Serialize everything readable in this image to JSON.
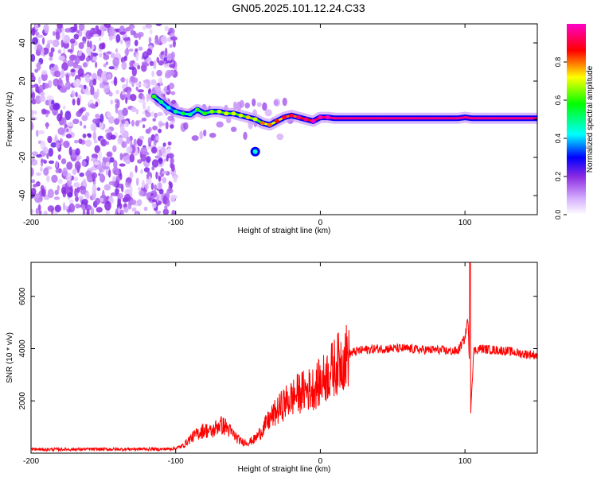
{
  "title": "GN05.2025.101.12.24.C33",
  "chart_data": [
    {
      "type": "heatmap",
      "xlabel": "Height of straight line (km)",
      "ylabel": "Frequency (Hz)",
      "xlim": [
        -200,
        150
      ],
      "ylim": [
        -50,
        50
      ],
      "xticks": [
        -200,
        -100,
        0,
        100
      ],
      "yticks": [
        -40,
        -20,
        0,
        20,
        40
      ],
      "colorbar": {
        "label": "Normalized spectral amplitude",
        "range": [
          0,
          1
        ],
        "ticks": [
          "0.0",
          "0.2",
          "0.4",
          "0.6",
          "0.8"
        ],
        "colors": [
          "#ffffff",
          "#d9b3ff",
          "#8a2be2",
          "#0000ff",
          "#00ffff",
          "#00ff00",
          "#ffff00",
          "#ff0000",
          "#ff00c8"
        ]
      },
      "noise_region_x": [
        -200,
        -100
      ],
      "track": {
        "x": [
          -115,
          -110,
          -105,
          -100,
          -95,
          -90,
          -85,
          -80,
          -75,
          -70,
          -65,
          -60,
          -55,
          -50,
          -45,
          -40,
          -35,
          -30,
          -25,
          -20,
          -15,
          -10,
          -5,
          0,
          5,
          10,
          20,
          40,
          60,
          80,
          95,
          100,
          105,
          120,
          150
        ],
        "freq": [
          12,
          9,
          6,
          4,
          3,
          2.5,
          5,
          3,
          4,
          4,
          3,
          3,
          2,
          1,
          0,
          -2,
          -3,
          -1,
          1,
          2,
          1,
          0,
          -1,
          1,
          1,
          0.5,
          0.5,
          0.5,
          0.5,
          0.5,
          0.5,
          1,
          0.5,
          0.5,
          0.5
        ],
        "amplitude": [
          0.5,
          0.4,
          0.35,
          0.4,
          0.45,
          0.4,
          0.5,
          0.5,
          0.55,
          0.6,
          0.6,
          0.6,
          0.6,
          0.65,
          0.6,
          0.7,
          0.7,
          0.75,
          0.8,
          0.8,
          0.85,
          0.85,
          0.9,
          0.9,
          0.95,
          0.95,
          0.95,
          0.95,
          0.95,
          0.95,
          0.95,
          0.95,
          0.95,
          0.95,
          0.95
        ]
      },
      "side_blob": {
        "x": -45,
        "freq": -17,
        "amplitude": 0.3
      }
    },
    {
      "type": "line",
      "xlabel": "Height of straight line (km)",
      "ylabel": "SNR (10 * v/v)",
      "xlim": [
        -200,
        150
      ],
      "ylim": [
        0,
        7300
      ],
      "xticks": [
        -200,
        -100,
        0,
        100
      ],
      "yticks": [
        2000,
        4000,
        6000
      ],
      "color": "#ff0000",
      "series": [
        {
          "x": [
            -200,
            -190,
            -180,
            -170,
            -160,
            -150,
            -140,
            -130,
            -120,
            -110,
            -100,
            -95,
            -90,
            -85,
            -80,
            -75,
            -70,
            -65,
            -60,
            -55,
            -50,
            -45,
            -40,
            -35,
            -30,
            -25,
            -20,
            -15,
            -10,
            -5,
            0,
            5,
            10,
            15,
            20,
            25,
            30,
            40,
            50,
            60,
            70,
            80,
            90,
            95,
            100,
            102,
            104,
            106,
            110,
            120,
            130,
            140,
            150
          ],
          "y": [
            150,
            140,
            150,
            145,
            150,
            150,
            150,
            155,
            160,
            150,
            180,
            280,
            550,
            750,
            900,
            800,
            1100,
            1000,
            700,
            450,
            400,
            550,
            900,
            1300,
            1600,
            1900,
            2100,
            2300,
            2400,
            2500,
            2700,
            3000,
            3300,
            3600,
            3800,
            3900,
            3950,
            4000,
            4000,
            4000,
            3950,
            3950,
            3900,
            3900,
            4400,
            5200,
            1700,
            3900,
            4000,
            3950,
            3900,
            3800,
            3750
          ]
        }
      ]
    }
  ]
}
